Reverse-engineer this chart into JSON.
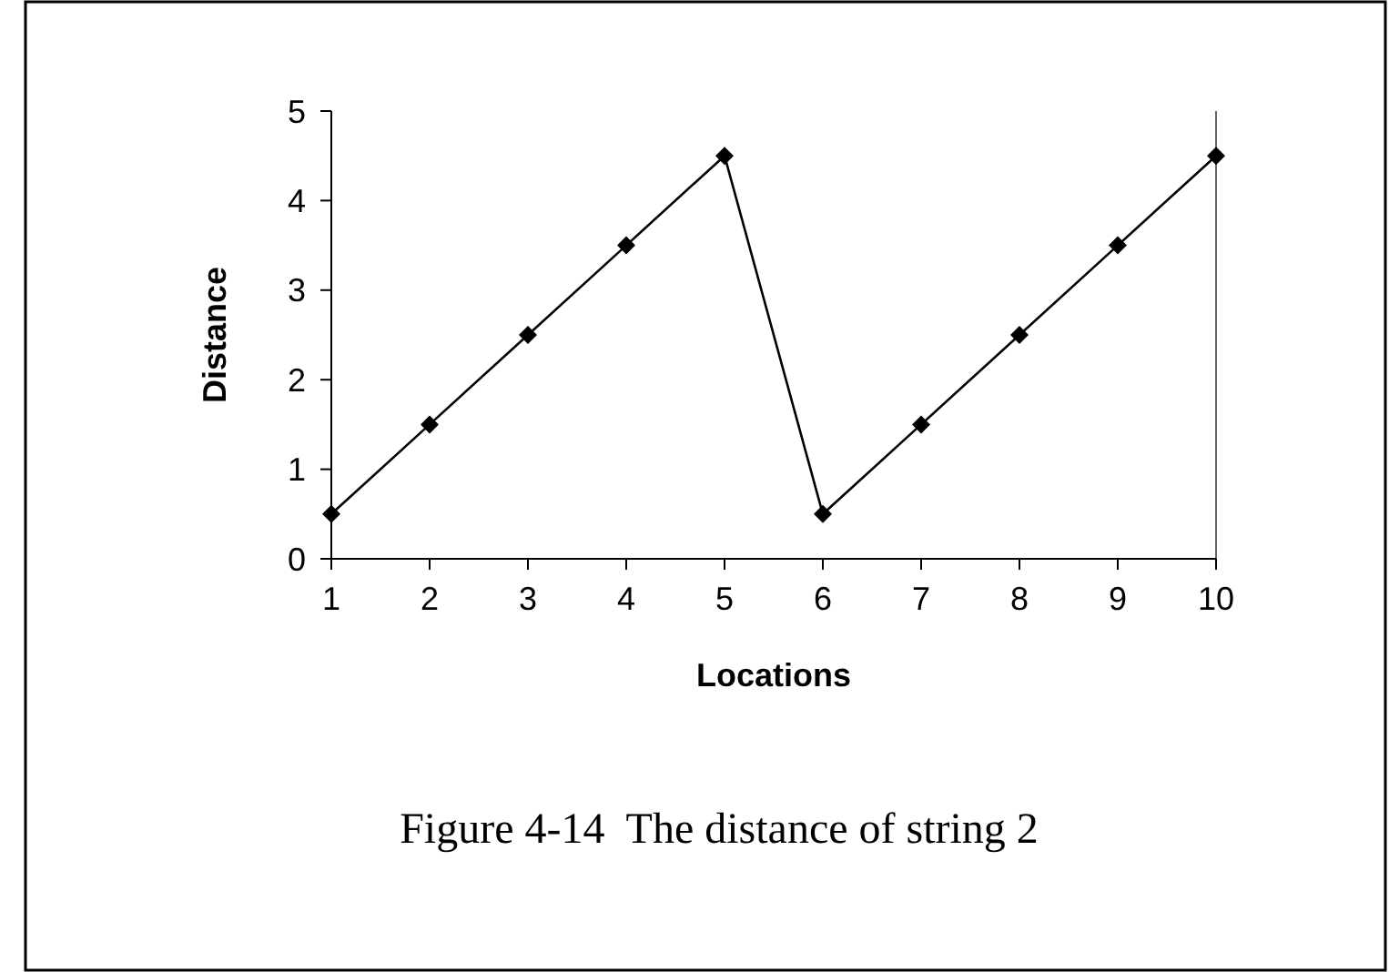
{
  "chart_data": {
    "type": "line",
    "xlabel": "Locations",
    "ylabel": "Distance",
    "x": [
      1,
      2,
      3,
      4,
      5,
      6,
      7,
      8,
      9,
      10
    ],
    "series": [
      {
        "color": "#000000",
        "values": [
          0.5,
          1.5,
          2.5,
          3.5,
          4.5,
          0.5,
          1.5,
          2.5,
          3.5,
          4.5
        ]
      }
    ],
    "xlim": [
      1,
      10
    ],
    "xticks": [
      1,
      2,
      3,
      4,
      5,
      6,
      7,
      8,
      9,
      10
    ],
    "ylim": [
      0,
      5
    ],
    "yticks": [
      0,
      1,
      2,
      3,
      4,
      5
    ],
    "grid": false,
    "marker": "diamond",
    "line_style": "solid",
    "annotations": [
      "Figure 4-14  The distance of string 2"
    ]
  }
}
